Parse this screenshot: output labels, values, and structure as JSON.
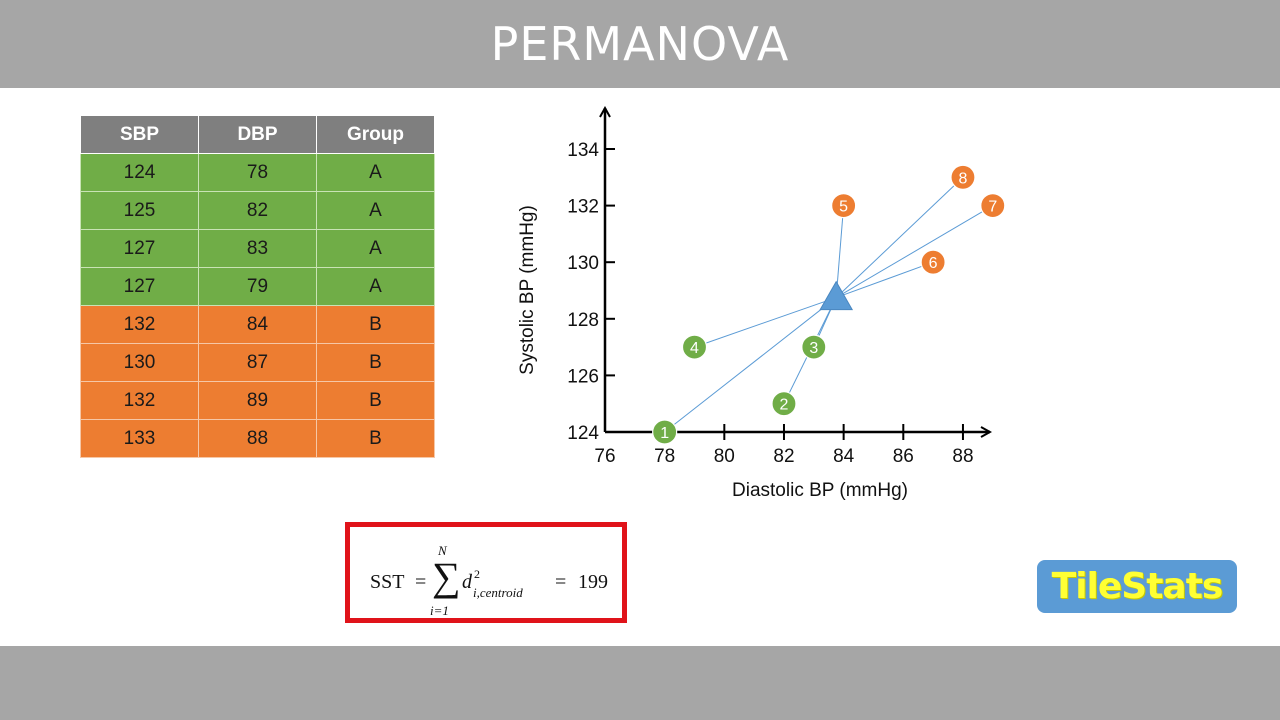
{
  "header": {
    "title": "PERMANOVA"
  },
  "table": {
    "columns": [
      "SBP",
      "DBP",
      "Group"
    ],
    "rows": [
      {
        "sbp": "124",
        "dbp": "78",
        "group": "A"
      },
      {
        "sbp": "125",
        "dbp": "82",
        "group": "A"
      },
      {
        "sbp": "127",
        "dbp": "83",
        "group": "A"
      },
      {
        "sbp": "127",
        "dbp": "79",
        "group": "A"
      },
      {
        "sbp": "132",
        "dbp": "84",
        "group": "B"
      },
      {
        "sbp": "130",
        "dbp": "87",
        "group": "B"
      },
      {
        "sbp": "132",
        "dbp": "89",
        "group": "B"
      },
      {
        "sbp": "133",
        "dbp": "88",
        "group": "B"
      }
    ]
  },
  "colors": {
    "group_A": "#70ad47",
    "group_B": "#ed7d31",
    "header_bg": "#a6a6a6",
    "table_header": "#7f7f7f",
    "centroid": "#5b9bd5",
    "lines": "#5b9bd5",
    "formula_border": "#e0131a",
    "logo_bg": "#5b9bd5",
    "logo_text": "#ffff33"
  },
  "chart_data": {
    "type": "scatter",
    "title": "",
    "xlabel": "Diastolic BP (mmHg)",
    "ylabel": "Systolic BP (mmHg)",
    "xlim": [
      76,
      89
    ],
    "ylim": [
      124,
      135
    ],
    "x_ticks": [
      "76",
      "78",
      "80",
      "82",
      "84",
      "86",
      "88"
    ],
    "y_ticks": [
      "124",
      "126",
      "128",
      "130",
      "132",
      "134"
    ],
    "grid": false,
    "legend": null,
    "series": [
      {
        "name": "A",
        "color": "#70ad47",
        "points": [
          {
            "label": "1",
            "x": 78,
            "y": 124
          },
          {
            "label": "2",
            "x": 82,
            "y": 125
          },
          {
            "label": "3",
            "x": 83,
            "y": 127
          },
          {
            "label": "4",
            "x": 79,
            "y": 127
          }
        ]
      },
      {
        "name": "B",
        "color": "#ed7d31",
        "points": [
          {
            "label": "5",
            "x": 84,
            "y": 132
          },
          {
            "label": "6",
            "x": 87,
            "y": 130
          },
          {
            "label": "7",
            "x": 89,
            "y": 132
          },
          {
            "label": "8",
            "x": 88,
            "y": 133
          }
        ]
      }
    ],
    "centroid": {
      "x": 83.75,
      "y": 128.75,
      "marker": "triangle",
      "color": "#5b9bd5"
    },
    "annotations": [
      "Lines connect each point to the centroid"
    ]
  },
  "formula": {
    "lhs": "SST",
    "equals": "=",
    "sigma": "∑",
    "upper": "N",
    "lower": "i=1",
    "term": "d",
    "superscript": "2",
    "subscript": "i,centroid",
    "equals2": "=",
    "value": "199"
  },
  "logo": {
    "text": "TileStats"
  }
}
